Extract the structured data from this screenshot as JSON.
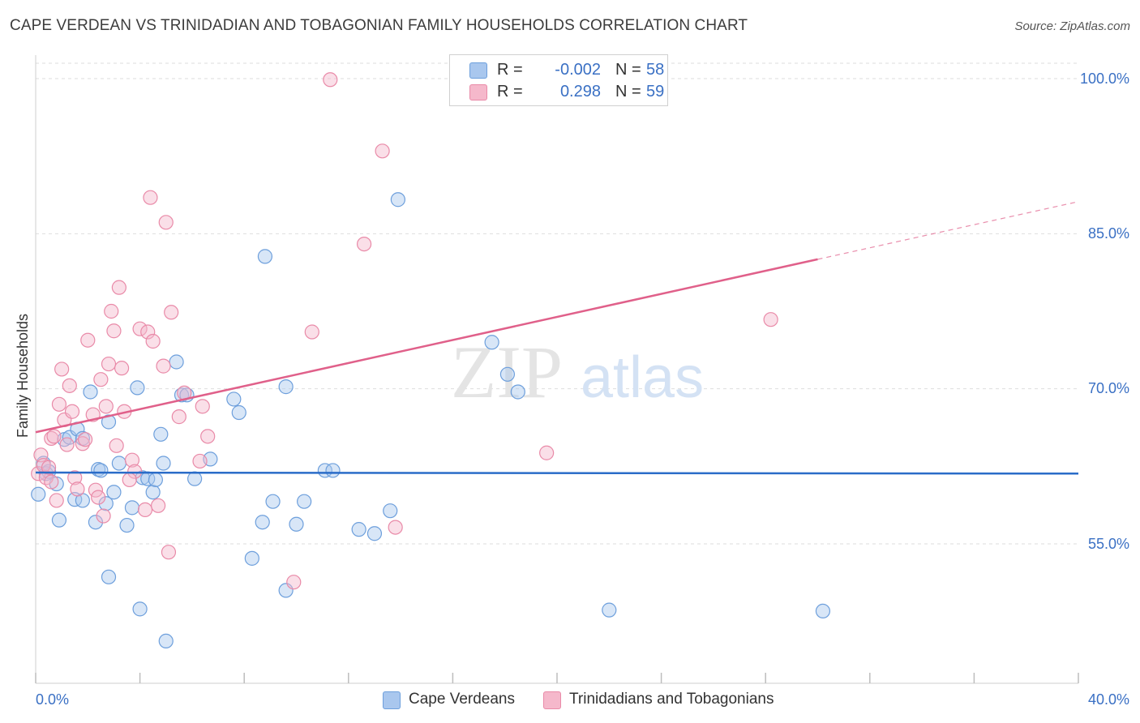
{
  "title": "CAPE VERDEAN VS TRINIDADIAN AND TOBAGONIAN FAMILY HOUSEHOLDS CORRELATION CHART",
  "source": "Source: ZipAtlas.com",
  "watermark": {
    "zip": "ZIP",
    "atlas": "atlas"
  },
  "legend_top": [
    {
      "r_label": "R =",
      "r_value": "-0.002",
      "n_label": "N =",
      "n_value": "58"
    },
    {
      "r_label": "R =",
      "r_value": "0.298",
      "n_label": "N =",
      "n_value": "59"
    }
  ],
  "legend_bottom": [
    "Cape Verdeans",
    "Trinidadians and Tobagonians"
  ],
  "axis": {
    "ylabel": "Family Households",
    "x_min_label": "0.0%",
    "x_max_label": "40.0%",
    "y_tick_labels": [
      "100.0%",
      "85.0%",
      "70.0%",
      "55.0%"
    ]
  },
  "colors": {
    "blue_fill": "#a9c7ee",
    "blue_stroke": "#6d9fdc",
    "blue_line": "#2a6cc8",
    "pink_fill": "#f5b8cb",
    "pink_stroke": "#e98aa8",
    "pink_line": "#e0608a",
    "axis_text": "#3a70c4",
    "grid": "#dddddd"
  },
  "chart_data": {
    "type": "scatter",
    "title": "CAPE VERDEAN VS TRINIDADIAN AND TOBAGONIAN FAMILY HOUSEHOLDS CORRELATION CHART",
    "xlabel": "",
    "ylabel": "Family Households",
    "xlim": [
      0,
      40
    ],
    "ylim": [
      43,
      102
    ],
    "y_ticks": [
      100,
      85,
      70,
      55
    ],
    "grid": true,
    "legend_placement": "bottom",
    "series": [
      {
        "name": "Cape Verdeans",
        "r": -0.002,
        "n": 58,
        "trend": {
          "x": [
            0,
            40
          ],
          "y": [
            61.9,
            61.8
          ],
          "dashed_from": null
        },
        "points": [
          [
            0.1,
            59.8
          ],
          [
            0.3,
            62.8
          ],
          [
            0.4,
            61.8
          ],
          [
            0.5,
            62.0
          ],
          [
            0.8,
            60.8
          ],
          [
            0.9,
            57.3
          ],
          [
            1.1,
            65.1
          ],
          [
            1.3,
            65.3
          ],
          [
            1.5,
            59.3
          ],
          [
            1.6,
            66.1
          ],
          [
            1.8,
            65.2
          ],
          [
            2.1,
            69.7
          ],
          [
            2.3,
            57.1
          ],
          [
            2.4,
            62.2
          ],
          [
            2.5,
            62.1
          ],
          [
            2.7,
            58.9
          ],
          [
            2.8,
            51.8
          ],
          [
            3.0,
            60.0
          ],
          [
            3.2,
            62.8
          ],
          [
            3.5,
            56.8
          ],
          [
            3.7,
            58.5
          ],
          [
            3.9,
            70.1
          ],
          [
            4.0,
            48.7
          ],
          [
            4.1,
            61.4
          ],
          [
            4.3,
            61.3
          ],
          [
            4.5,
            60.0
          ],
          [
            4.8,
            65.6
          ],
          [
            4.9,
            62.8
          ],
          [
            5.0,
            45.6
          ],
          [
            5.4,
            72.6
          ],
          [
            5.6,
            69.4
          ],
          [
            5.8,
            69.4
          ],
          [
            6.1,
            61.3
          ],
          [
            6.7,
            63.2
          ],
          [
            7.6,
            69.0
          ],
          [
            7.8,
            67.7
          ],
          [
            8.3,
            53.6
          ],
          [
            8.7,
            57.1
          ],
          [
            8.8,
            82.8
          ],
          [
            9.1,
            59.1
          ],
          [
            9.6,
            70.2
          ],
          [
            9.6,
            50.5
          ],
          [
            10.0,
            56.9
          ],
          [
            10.3,
            59.1
          ],
          [
            11.1,
            62.1
          ],
          [
            11.4,
            62.1
          ],
          [
            12.4,
            56.4
          ],
          [
            13.0,
            56.0
          ],
          [
            13.6,
            58.2
          ],
          [
            13.9,
            88.3
          ],
          [
            17.5,
            74.5
          ],
          [
            18.1,
            71.4
          ],
          [
            18.5,
            69.7
          ],
          [
            22.0,
            48.6
          ],
          [
            30.2,
            48.5
          ],
          [
            2.8,
            66.8
          ],
          [
            1.8,
            59.2
          ],
          [
            4.6,
            61.2
          ]
        ]
      },
      {
        "name": "Trinidadians and Tobagonians",
        "r": 0.298,
        "n": 59,
        "trend": {
          "x": [
            0,
            40
          ],
          "y": [
            65.8,
            88.1
          ],
          "dashed_from": 30.0
        },
        "points": [
          [
            0.1,
            61.8
          ],
          [
            0.2,
            63.6
          ],
          [
            0.3,
            62.6
          ],
          [
            0.4,
            61.4
          ],
          [
            0.5,
            62.4
          ],
          [
            0.6,
            65.2
          ],
          [
            0.7,
            65.4
          ],
          [
            0.8,
            59.2
          ],
          [
            0.9,
            68.5
          ],
          [
            1.0,
            71.9
          ],
          [
            1.1,
            67.0
          ],
          [
            1.3,
            70.3
          ],
          [
            1.4,
            67.8
          ],
          [
            1.5,
            61.4
          ],
          [
            1.6,
            60.3
          ],
          [
            1.8,
            64.7
          ],
          [
            1.9,
            65.1
          ],
          [
            2.0,
            74.7
          ],
          [
            2.2,
            67.5
          ],
          [
            2.3,
            60.2
          ],
          [
            2.4,
            59.5
          ],
          [
            2.5,
            70.9
          ],
          [
            2.6,
            57.7
          ],
          [
            2.7,
            68.3
          ],
          [
            2.8,
            72.4
          ],
          [
            2.9,
            77.5
          ],
          [
            3.0,
            75.6
          ],
          [
            3.1,
            64.5
          ],
          [
            3.2,
            79.8
          ],
          [
            3.3,
            72.0
          ],
          [
            3.4,
            67.8
          ],
          [
            3.7,
            63.1
          ],
          [
            3.8,
            62.0
          ],
          [
            4.0,
            75.8
          ],
          [
            4.2,
            58.3
          ],
          [
            4.3,
            75.5
          ],
          [
            4.4,
            88.5
          ],
          [
            4.5,
            74.6
          ],
          [
            4.7,
            58.7
          ],
          [
            4.9,
            72.2
          ],
          [
            5.0,
            86.1
          ],
          [
            5.1,
            54.2
          ],
          [
            5.2,
            77.4
          ],
          [
            5.5,
            67.3
          ],
          [
            5.7,
            69.6
          ],
          [
            6.3,
            63.0
          ],
          [
            6.4,
            68.3
          ],
          [
            6.6,
            65.4
          ],
          [
            9.9,
            51.3
          ],
          [
            10.6,
            75.5
          ],
          [
            11.3,
            99.9
          ],
          [
            12.6,
            84.0
          ],
          [
            13.3,
            93.0
          ],
          [
            13.8,
            56.6
          ],
          [
            19.6,
            63.8
          ],
          [
            28.2,
            76.7
          ],
          [
            0.6,
            61.0
          ],
          [
            1.2,
            64.6
          ],
          [
            3.6,
            61.2
          ]
        ]
      }
    ]
  }
}
